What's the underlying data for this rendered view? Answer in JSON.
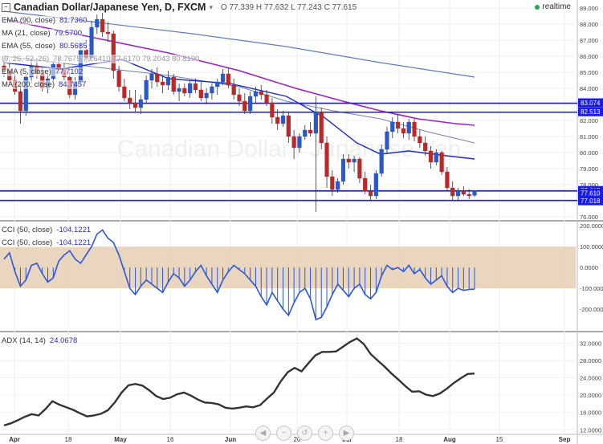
{
  "header": {
    "title": "Canadian Dollar/Japanese Yen, D, FXCM",
    "ohlc": "O 77.339 H 77.632 L 77.243 C 77.615",
    "realtime_label": "realtime",
    "watermark": "Canadian Dollar / Japanese Yen"
  },
  "indicators": {
    "ema90": {
      "label": "EMA (90, close)",
      "value": "81.7360"
    },
    "ma21": {
      "label": "MA (21, close)",
      "value": "79.5700"
    },
    "ema55": {
      "label": "EMA (55, close)",
      "value": "80.5685"
    },
    "ichimoku": {
      "label": "(9, 26, 52, 26)",
      "value": "78.7675 79.6410 77.6170 79.2043 80.8190"
    },
    "ema_short": {
      "label": "EMA (5, close)",
      "value": "77.7102"
    },
    "ma200": {
      "label": "MA (200, close)",
      "value": "84.7457"
    },
    "cci": {
      "label": "CCI (50, close)",
      "value": "-104.1221"
    },
    "cci2": {
      "label": "CCI (50, close)",
      "value": "-104.1221"
    },
    "adx": {
      "label": "ADX (14, 14)",
      "value": "24.0678"
    }
  },
  "price_levels": [
    "83.074",
    "82.513",
    "77.615",
    "77.610",
    "77.018"
  ],
  "colors": {
    "up": "#2a58c8",
    "down": "#b82a2a",
    "hline": "#1a1ae6",
    "ema90": "#a020c8",
    "ma200": "#5a7fb8",
    "ema55": "#7080c0",
    "ma21": "#1a2ad0",
    "cci": "#2a58d8",
    "adx": "#333333",
    "cci_band": "#e8d2b8"
  },
  "nav_icons": [
    "chevron-left-icon",
    "zoom-out-icon",
    "reset-icon",
    "zoom-in-icon",
    "chevron-right-icon"
  ],
  "chart_data": [
    {
      "type": "candlestick",
      "title": "Canadian Dollar/Japanese Yen, D, FXCM",
      "x_ticks": [
        "Apr",
        "18",
        "May",
        "16",
        "Jun",
        "20",
        "Jul",
        "18",
        "Aug",
        "15",
        "Sep"
      ],
      "ylim": [
        75.8,
        89.5
      ],
      "y_ticks": [
        "89.000",
        "88.000",
        "87.000",
        "86.000",
        "85.000",
        "84.000",
        "82.000",
        "81.000",
        "80.000",
        "79.000",
        "78.000",
        "76.000"
      ],
      "candles": [
        [
          85.4,
          85.9,
          84.7,
          85.1
        ],
        [
          85.1,
          85.6,
          84.2,
          84.5
        ],
        [
          84.5,
          84.9,
          83.6,
          83.8
        ],
        [
          83.8,
          84.2,
          81.8,
          82.6
        ],
        [
          82.6,
          84.9,
          82.3,
          84.7
        ],
        [
          84.7,
          85.8,
          84.3,
          85.4
        ],
        [
          85.4,
          85.9,
          84.6,
          84.9
        ],
        [
          84.9,
          85.3,
          83.8,
          84.0
        ],
        [
          84.0,
          84.9,
          83.7,
          84.6
        ],
        [
          84.6,
          85.7,
          84.4,
          85.5
        ],
        [
          85.5,
          85.9,
          84.9,
          85.2
        ],
        [
          85.2,
          85.6,
          84.5,
          84.7
        ],
        [
          84.7,
          85.0,
          83.4,
          83.6
        ],
        [
          83.6,
          84.7,
          83.3,
          84.4
        ],
        [
          84.4,
          86.8,
          84.2,
          86.4
        ],
        [
          86.4,
          87.0,
          85.6,
          85.9
        ],
        [
          85.9,
          88.2,
          85.7,
          87.8
        ],
        [
          87.8,
          88.6,
          87.4,
          88.3
        ],
        [
          88.3,
          88.7,
          87.2,
          87.5
        ],
        [
          87.5,
          88.1,
          86.9,
          87.4
        ],
        [
          87.4,
          87.6,
          84.6,
          85.1
        ],
        [
          85.1,
          85.4,
          83.8,
          84.1
        ],
        [
          84.1,
          84.6,
          83.2,
          83.4
        ],
        [
          83.4,
          83.9,
          82.7,
          83.1
        ],
        [
          83.1,
          83.9,
          82.5,
          82.8
        ],
        [
          82.8,
          83.6,
          82.4,
          83.3
        ],
        [
          83.3,
          84.8,
          83.1,
          84.5
        ],
        [
          84.5,
          85.2,
          84.0,
          84.9
        ],
        [
          84.9,
          85.3,
          84.1,
          84.4
        ],
        [
          84.4,
          84.8,
          83.7,
          84.2
        ],
        [
          84.2,
          85.1,
          83.9,
          84.7
        ],
        [
          84.7,
          84.9,
          83.6,
          83.8
        ],
        [
          83.8,
          84.3,
          83.2,
          84.0
        ],
        [
          84.0,
          84.3,
          83.5,
          83.7
        ],
        [
          83.7,
          84.5,
          83.4,
          84.3
        ],
        [
          84.3,
          84.6,
          83.7,
          83.9
        ],
        [
          83.9,
          84.4,
          83.2,
          83.4
        ],
        [
          83.4,
          84.0,
          83.0,
          83.7
        ],
        [
          83.7,
          84.3,
          83.3,
          84.1
        ],
        [
          84.1,
          84.6,
          83.6,
          84.4
        ],
        [
          84.4,
          85.2,
          84.2,
          84.9
        ],
        [
          84.9,
          85.3,
          84.0,
          84.2
        ],
        [
          84.2,
          84.6,
          83.3,
          83.6
        ],
        [
          83.6,
          84.0,
          82.9,
          83.2
        ],
        [
          83.2,
          83.7,
          82.4,
          82.6
        ],
        [
          82.6,
          83.8,
          82.4,
          83.5
        ],
        [
          83.5,
          84.1,
          83.1,
          83.8
        ],
        [
          83.8,
          84.2,
          83.3,
          83.6
        ],
        [
          83.6,
          83.9,
          82.9,
          83.1
        ],
        [
          83.1,
          83.4,
          81.8,
          82.2
        ],
        [
          82.2,
          82.7,
          81.4,
          81.8
        ],
        [
          81.8,
          82.6,
          81.6,
          82.3
        ],
        [
          82.3,
          82.5,
          80.6,
          81.0
        ],
        [
          81.0,
          81.4,
          79.6,
          80.3
        ],
        [
          80.3,
          81.2,
          80.0,
          81.0
        ],
        [
          81.0,
          81.7,
          80.8,
          81.4
        ],
        [
          81.4,
          81.9,
          81.0,
          81.2
        ],
        [
          81.2,
          83.5,
          76.3,
          82.5
        ],
        [
          82.5,
          82.8,
          80.2,
          80.6
        ],
        [
          80.6,
          81.0,
          77.8,
          78.5
        ],
        [
          78.5,
          78.9,
          77.3,
          77.7
        ],
        [
          77.7,
          78.4,
          77.5,
          78.2
        ],
        [
          78.2,
          79.9,
          78.0,
          79.6
        ],
        [
          79.6,
          79.9,
          79.0,
          79.4
        ],
        [
          79.4,
          79.8,
          78.8,
          79.6
        ],
        [
          79.6,
          79.7,
          78.1,
          78.4
        ],
        [
          78.4,
          78.8,
          77.4,
          77.6
        ],
        [
          77.6,
          78.0,
          77.0,
          77.3
        ],
        [
          77.3,
          78.9,
          77.1,
          78.7
        ],
        [
          78.7,
          80.5,
          78.5,
          80.2
        ],
        [
          80.2,
          81.6,
          79.9,
          81.3
        ],
        [
          81.3,
          82.2,
          80.9,
          81.9
        ],
        [
          81.9,
          82.4,
          81.2,
          81.5
        ],
        [
          81.5,
          81.9,
          80.9,
          81.2
        ],
        [
          81.2,
          82.1,
          80.8,
          81.9
        ],
        [
          81.9,
          82.1,
          80.7,
          81.0
        ],
        [
          81.0,
          81.4,
          80.3,
          80.6
        ],
        [
          80.6,
          81.0,
          79.8,
          80.1
        ],
        [
          80.1,
          80.4,
          79.0,
          79.4
        ],
        [
          79.4,
          80.2,
          79.2,
          80.0
        ],
        [
          80.0,
          80.1,
          78.6,
          78.8
        ],
        [
          78.8,
          79.1,
          77.6,
          77.8
        ],
        [
          77.8,
          78.2,
          77.0,
          77.3
        ],
        [
          77.3,
          77.8,
          77.0,
          77.6
        ],
        [
          77.6,
          77.9,
          77.3,
          77.4
        ],
        [
          77.4,
          77.7,
          77.1,
          77.3
        ],
        [
          77.34,
          77.63,
          77.24,
          77.62
        ]
      ],
      "ema90": [
        [
          0,
          88.3
        ],
        [
          0.2,
          87.1
        ],
        [
          0.35,
          86.2
        ],
        [
          0.5,
          85.1
        ],
        [
          0.62,
          84.0
        ],
        [
          0.72,
          83.2
        ],
        [
          0.8,
          82.6
        ],
        [
          0.88,
          82.1
        ],
        [
          0.96,
          81.8
        ],
        [
          1,
          81.7
        ]
      ],
      "ma200": [
        [
          0,
          88.8
        ],
        [
          0.2,
          88.1
        ],
        [
          0.4,
          87.4
        ],
        [
          0.6,
          86.6
        ],
        [
          0.8,
          85.6
        ],
        [
          1,
          84.7
        ]
      ],
      "ema55": [
        [
          0,
          86.0
        ],
        [
          0.2,
          85.3
        ],
        [
          0.35,
          84.8
        ],
        [
          0.5,
          84.1
        ],
        [
          0.6,
          83.2
        ],
        [
          0.7,
          82.6
        ],
        [
          0.8,
          82.1
        ],
        [
          0.9,
          81.3
        ],
        [
          1,
          80.6
        ]
      ],
      "ma21": [
        [
          0,
          85.6
        ],
        [
          0.12,
          85.2
        ],
        [
          0.25,
          85.8
        ],
        [
          0.35,
          84.6
        ],
        [
          0.48,
          84.3
        ],
        [
          0.6,
          83.5
        ],
        [
          0.68,
          82.2
        ],
        [
          0.75,
          80.6
        ],
        [
          0.8,
          79.9
        ],
        [
          0.86,
          80.1
        ],
        [
          0.94,
          79.8
        ],
        [
          1,
          79.6
        ]
      ]
    },
    {
      "type": "line",
      "title": "CCI (50, close)",
      "ylim": [
        -300,
        220
      ],
      "y_ticks": [
        "200.0000",
        "100.0000",
        "0.0000",
        "-100.0000",
        "-200.0000"
      ],
      "band": [
        -100,
        100
      ],
      "values": [
        40,
        70,
        -20,
        -90,
        -60,
        10,
        20,
        -30,
        -70,
        -50,
        30,
        60,
        80,
        40,
        20,
        60,
        100,
        160,
        180,
        140,
        120,
        60,
        -20,
        -100,
        -130,
        -90,
        -60,
        -80,
        -100,
        -120,
        -70,
        -30,
        -50,
        -90,
        -60,
        -20,
        10,
        -40,
        -80,
        -120,
        -60,
        -20,
        10,
        -10,
        -30,
        -60,
        -90,
        -140,
        -180,
        -120,
        -160,
        -200,
        -230,
        -170,
        -120,
        -100,
        -150,
        -250,
        -240,
        -190,
        -130,
        -80,
        -110,
        -140,
        -100,
        -80,
        -130,
        -150,
        -120,
        -40,
        10,
        -10,
        0,
        -20,
        10,
        -30,
        -10,
        -50,
        -80,
        -60,
        -40,
        -90,
        -120,
        -100,
        -110,
        -105,
        -104
      ]
    },
    {
      "type": "line",
      "title": "ADX (14, 14)",
      "ylim": [
        11.5,
        34.5
      ],
      "y_ticks": [
        "32.0000",
        "28.0000",
        "24.0000",
        "20.0000",
        "16.0000",
        "12.0000"
      ],
      "values": [
        13,
        13.5,
        14.2,
        15,
        15.6,
        15.3,
        16.8,
        18.6,
        17.8,
        17.2,
        16.6,
        15.8,
        15.1,
        15.3,
        15.7,
        16.5,
        18.3,
        20.6,
        22.3,
        22.6,
        22.2,
        21.1,
        19.8,
        19.1,
        19.4,
        20.2,
        20.6,
        19.9,
        19.0,
        18.3,
        18.2,
        17.9,
        17.1,
        16.9,
        17.1,
        17.4,
        17.2,
        17.7,
        19.2,
        20.6,
        23.2,
        25.3,
        26.3,
        25.5,
        27.4,
        29.2,
        30.0,
        30.0,
        30.1,
        31.2,
        32.3,
        33.1,
        31.8,
        29.5,
        28.0,
        26.6,
        25.0,
        23.6,
        22.1,
        20.8,
        20.9,
        20.1,
        19.8,
        20.4,
        21.5,
        22.8,
        23.9,
        24.9,
        25.0
      ]
    }
  ]
}
